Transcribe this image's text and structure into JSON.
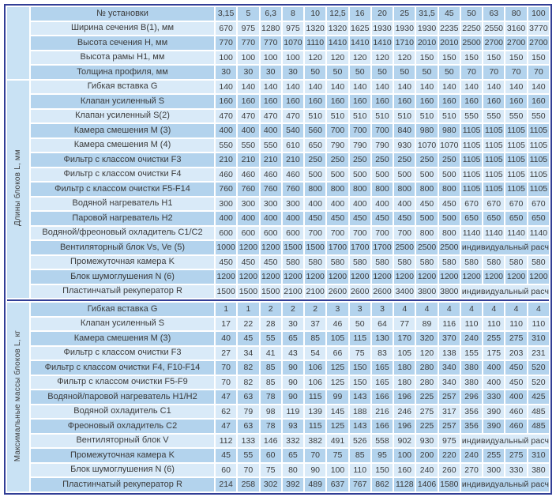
{
  "colors": {
    "row_dark": "#b3d3ed",
    "row_light": "#d9eaf8",
    "sidebar": "#c9e2f4",
    "border": "#323e96",
    "text": "#3b3b3b"
  },
  "table": {
    "header": {
      "label": "№ установки",
      "values": [
        "3,15",
        "5",
        "6,3",
        "8",
        "10",
        "12,5",
        "16",
        "20",
        "25",
        "31,5",
        "45",
        "50",
        "63",
        "80",
        "100"
      ]
    },
    "top_rows": [
      {
        "label": "Ширина сечения B(1), мм",
        "values": [
          670,
          975,
          1280,
          975,
          1320,
          1320,
          1625,
          1930,
          1930,
          1930,
          2235,
          2250,
          2550,
          3160,
          3770
        ]
      },
      {
        "label": "Высота сечения H, мм",
        "values": [
          770,
          770,
          770,
          1070,
          1110,
          1410,
          1410,
          1410,
          1710,
          2010,
          2010,
          2500,
          2700,
          2700,
          2700
        ]
      },
      {
        "label": "Высота рамы H1, мм",
        "values": [
          100,
          100,
          100,
          100,
          120,
          120,
          120,
          120,
          120,
          150,
          150,
          150,
          150,
          150,
          150
        ]
      },
      {
        "label": "Толщина профиля, мм",
        "values": [
          30,
          30,
          30,
          30,
          50,
          50,
          50,
          50,
          50,
          50,
          50,
          70,
          70,
          70,
          70
        ]
      }
    ],
    "sections": [
      {
        "side_label": "Длины блоков L, мм",
        "rows": [
          {
            "label": "Гибкая вставка G",
            "values": [
              140,
              140,
              140,
              140,
              140,
              140,
              140,
              140,
              140,
              140,
              140,
              140,
              140,
              140,
              140
            ]
          },
          {
            "label": "Клапан усиленный S",
            "values": [
              160,
              160,
              160,
              160,
              160,
              160,
              160,
              160,
              160,
              160,
              160,
              160,
              160,
              160,
              160
            ]
          },
          {
            "label": "Клапан усиленный S(2)",
            "values": [
              470,
              470,
              470,
              470,
              510,
              510,
              510,
              510,
              510,
              510,
              510,
              550,
              550,
              550,
              550
            ]
          },
          {
            "label": "Камера смешения M (3)",
            "values": [
              400,
              400,
              400,
              540,
              560,
              700,
              700,
              700,
              840,
              980,
              980,
              1105,
              1105,
              1105,
              1105
            ]
          },
          {
            "label": "Камера смешения M (4)",
            "values": [
              550,
              550,
              550,
              610,
              650,
              790,
              790,
              790,
              930,
              1070,
              1070,
              1105,
              1105,
              1105,
              1105
            ]
          },
          {
            "label": "Фильтр с классом очистки F3",
            "values": [
              210,
              210,
              210,
              210,
              250,
              250,
              250,
              250,
              250,
              250,
              250,
              1105,
              1105,
              1105,
              1105
            ]
          },
          {
            "label": "Фильтр с классом очистки F4",
            "values": [
              460,
              460,
              460,
              460,
              500,
              500,
              500,
              500,
              500,
              500,
              500,
              1105,
              1105,
              1105,
              1105
            ]
          },
          {
            "label": "Фильтр с классом очистки F5-F14",
            "values": [
              760,
              760,
              760,
              760,
              800,
              800,
              800,
              800,
              800,
              800,
              800,
              1105,
              1105,
              1105,
              1105
            ]
          },
          {
            "label": "Водяной нагреватель H1",
            "values": [
              300,
              300,
              300,
              300,
              400,
              400,
              400,
              400,
              400,
              450,
              450,
              670,
              670,
              670,
              670
            ]
          },
          {
            "label": "Паровой нагреватель H2",
            "values": [
              400,
              400,
              400,
              400,
              450,
              450,
              450,
              450,
              450,
              500,
              500,
              650,
              650,
              650,
              650
            ]
          },
          {
            "label": "Водяной/фреоновый охладитель C1/C2",
            "values": [
              600,
              600,
              600,
              600,
              700,
              700,
              700,
              700,
              700,
              800,
              800,
              1140,
              1140,
              1140,
              1140
            ]
          },
          {
            "label": "Вентиляторный блок Vs, Ve (5)",
            "values": [
              1000,
              1200,
              1200,
              1500,
              1500,
              1700,
              1700,
              1700,
              2500,
              2500,
              2500
            ],
            "note": "индивидуальный расчет"
          },
          {
            "label": "Промежуточная камера K",
            "values": [
              450,
              450,
              450,
              580,
              580,
              580,
              580,
              580,
              580,
              580,
              580,
              580,
              580,
              580,
              580
            ]
          },
          {
            "label": "Блок шумоглушения N (6)",
            "values": [
              1200,
              1200,
              1200,
              1200,
              1200,
              1200,
              1200,
              1200,
              1200,
              1200,
              1200,
              1200,
              1200,
              1200,
              1200
            ]
          },
          {
            "label": "Пластинчатый рекуператор R",
            "values": [
              1500,
              1500,
              1500,
              2100,
              2100,
              2600,
              2600,
              2600,
              3400,
              3800,
              3800
            ],
            "note": "индивидуальный расчет"
          }
        ]
      },
      {
        "side_label": "Максимальные массы блоков L, кг",
        "rows": [
          {
            "label": "Гибкая вставка G",
            "values": [
              1,
              1,
              2,
              2,
              2,
              3,
              3,
              3,
              4,
              4,
              4,
              4,
              4,
              4,
              4
            ]
          },
          {
            "label": "Клапан усиленный S",
            "values": [
              17,
              22,
              28,
              30,
              37,
              46,
              50,
              64,
              77,
              89,
              116,
              110,
              110,
              110,
              110
            ]
          },
          {
            "label": "Камера смешения M (3)",
            "values": [
              40,
              45,
              55,
              65,
              85,
              105,
              115,
              130,
              170,
              320,
              370,
              240,
              255,
              275,
              310
            ]
          },
          {
            "label": "Фильтр с классом очистки F3",
            "values": [
              27,
              34,
              41,
              43,
              54,
              66,
              75,
              83,
              105,
              120,
              138,
              155,
              175,
              203,
              231
            ]
          },
          {
            "label": "Фильтр с классом очистки F4, F10-F14",
            "values": [
              70,
              82,
              85,
              90,
              106,
              125,
              150,
              165,
              180,
              280,
              340,
              380,
              400,
              450,
              520
            ]
          },
          {
            "label": "Фильтр с классом очистки F5-F9",
            "values": [
              70,
              82,
              85,
              90,
              106,
              125,
              150,
              165,
              180,
              280,
              340,
              380,
              400,
              450,
              520
            ]
          },
          {
            "label": "Водяной/паровой нагреватель H1/H2",
            "values": [
              47,
              63,
              78,
              90,
              115,
              99,
              143,
              166,
              196,
              225,
              257,
              296,
              330,
              400,
              425
            ]
          },
          {
            "label": "Водяной охладитель C1",
            "values": [
              62,
              79,
              98,
              119,
              139,
              145,
              188,
              216,
              246,
              275,
              317,
              356,
              390,
              460,
              485
            ]
          },
          {
            "label": "Фреоновый охладитель C2",
            "values": [
              47,
              63,
              78,
              93,
              115,
              125,
              143,
              166,
              196,
              225,
              257,
              356,
              390,
              460,
              485
            ]
          },
          {
            "label": "Вентиляторный блок V",
            "values": [
              112,
              133,
              146,
              332,
              382,
              491,
              526,
              558,
              902,
              930,
              975
            ],
            "note": "индивидуальный расчет"
          },
          {
            "label": "Промежуточная камера K",
            "values": [
              45,
              55,
              60,
              65,
              70,
              75,
              85,
              95,
              100,
              200,
              220,
              240,
              255,
              275,
              310
            ]
          },
          {
            "label": "Блок шумоглушения N (6)",
            "values": [
              60,
              70,
              75,
              80,
              90,
              100,
              110,
              150,
              160,
              240,
              260,
              270,
              300,
              330,
              380
            ]
          },
          {
            "label": "Пластинчатый рекуператор R",
            "values": [
              214,
              258,
              302,
              392,
              489,
              637,
              767,
              862,
              1128,
              1406,
              1580
            ],
            "note": "индивидуальный расчет"
          }
        ]
      }
    ]
  }
}
